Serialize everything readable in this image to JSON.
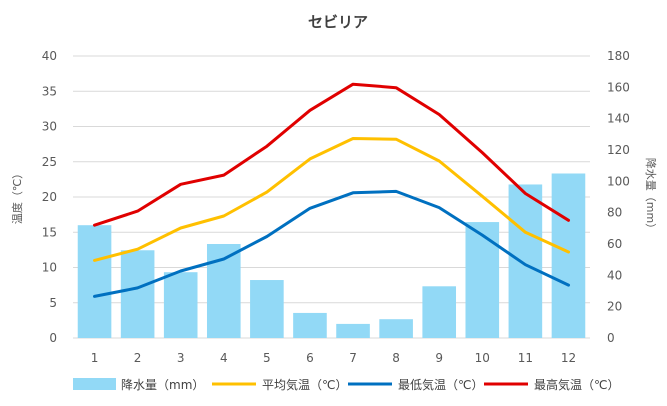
{
  "chart_data": {
    "type": "bar+line",
    "title": "セビリア",
    "categories": [
      "1",
      "2",
      "3",
      "4",
      "5",
      "6",
      "7",
      "8",
      "9",
      "10",
      "11",
      "12"
    ],
    "y_left": {
      "label": "温度（℃）",
      "lim": [
        0,
        40
      ],
      "ticks": [
        "0",
        "5",
        "10",
        "15",
        "20",
        "25",
        "30",
        "35",
        "40"
      ]
    },
    "y_right": {
      "label": "降水量（mm）",
      "lim": [
        0,
        180
      ],
      "ticks": [
        "0",
        "20",
        "40",
        "60",
        "80",
        "100",
        "120",
        "140",
        "160",
        "180"
      ]
    },
    "grid": true,
    "legend_position": "bottom",
    "bars": {
      "name": "降水量（mm）",
      "axis": "right",
      "color": "#92D9F6",
      "values": [
        72,
        56,
        42,
        60,
        37,
        16,
        9,
        12,
        33,
        74,
        98,
        105
      ]
    },
    "series": [
      {
        "name": "平均気温（℃）",
        "axis": "left",
        "color": "#FFC000",
        "values": [
          11.0,
          12.6,
          15.6,
          17.3,
          20.7,
          25.4,
          28.3,
          28.2,
          25.1,
          20.1,
          15.0,
          12.2
        ]
      },
      {
        "name": "最低気温（℃）",
        "axis": "left",
        "color": "#0070C0",
        "values": [
          5.9,
          7.1,
          9.5,
          11.2,
          14.4,
          18.4,
          20.6,
          20.8,
          18.5,
          14.6,
          10.4,
          7.5
        ]
      },
      {
        "name": "最高気温（℃）",
        "axis": "left",
        "color": "#E00000",
        "values": [
          16.0,
          18.0,
          21.8,
          23.1,
          27.2,
          32.3,
          36.0,
          35.5,
          31.7,
          26.3,
          20.5,
          16.7
        ]
      }
    ]
  }
}
